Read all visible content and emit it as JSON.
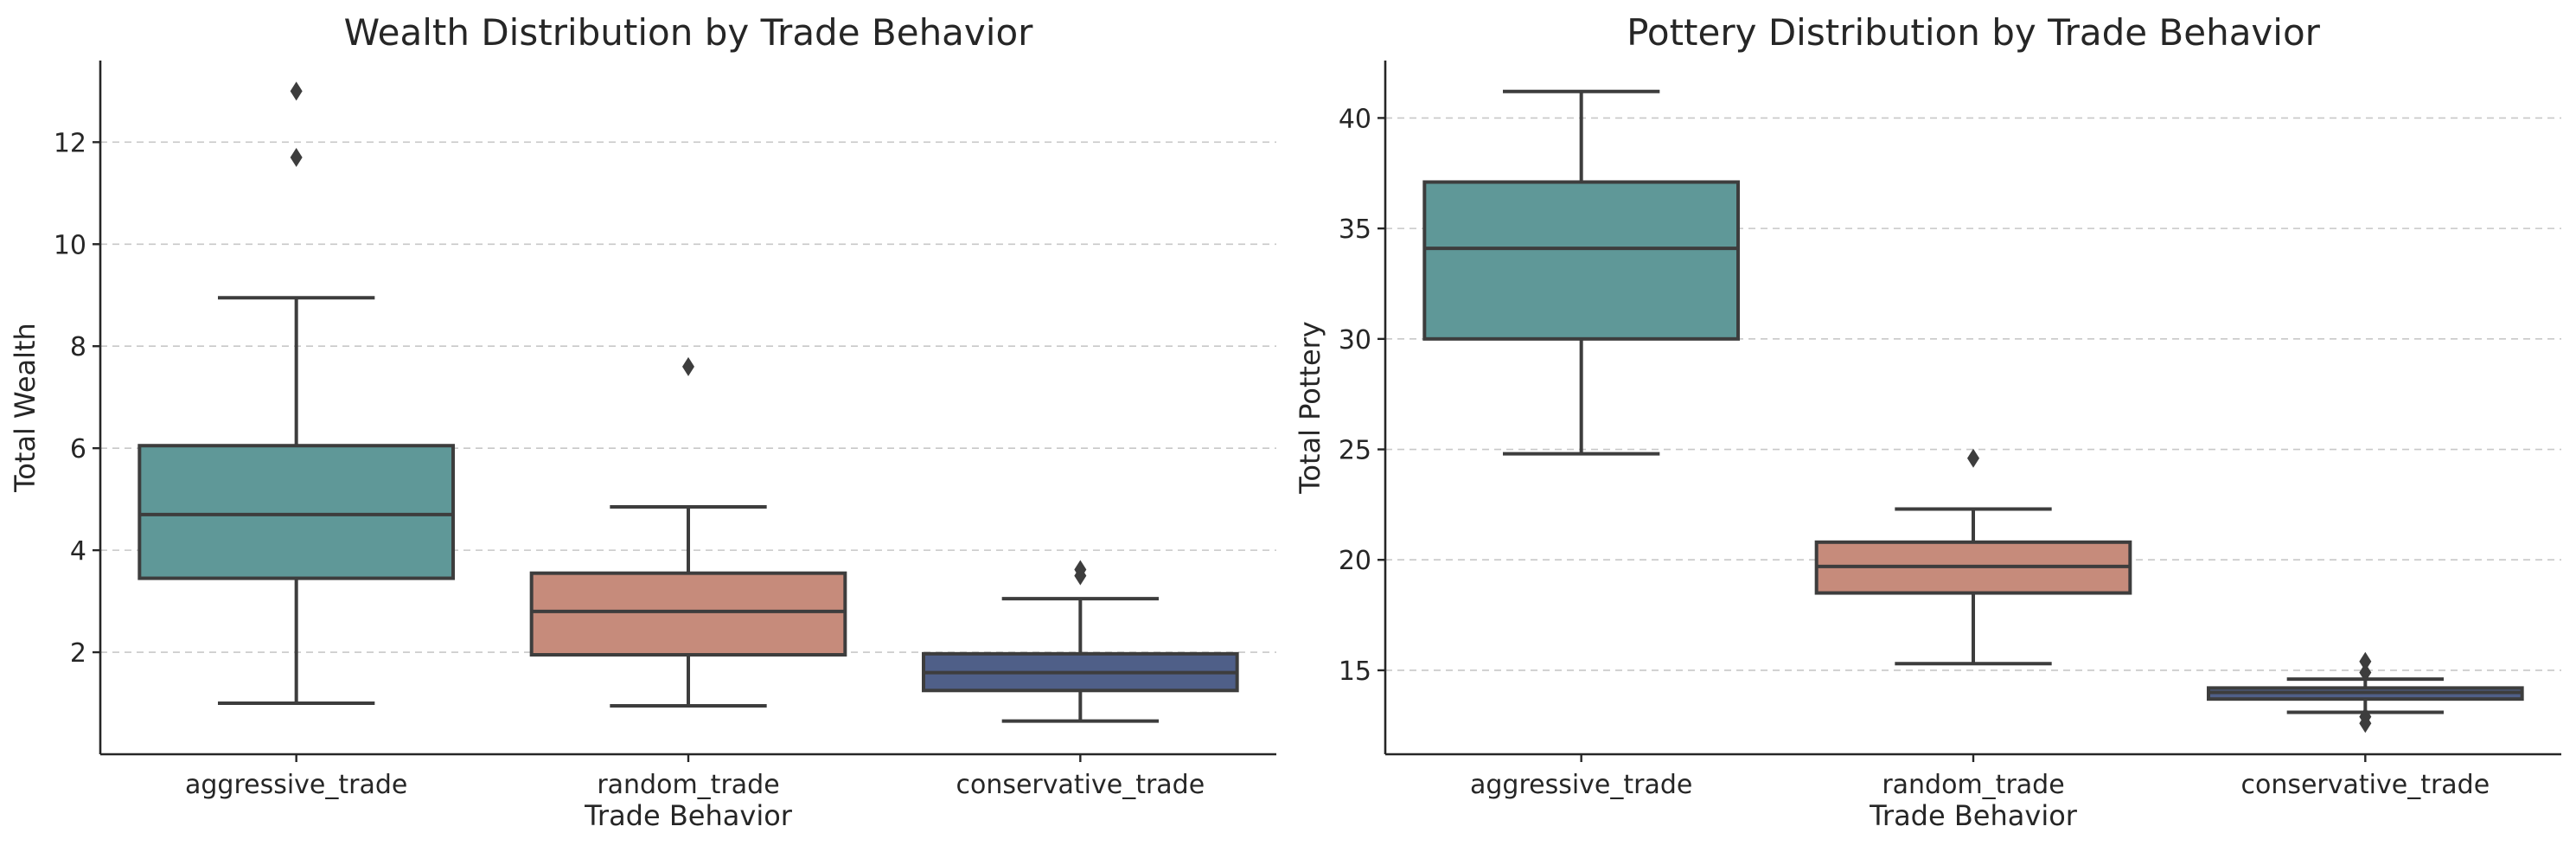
{
  "chart_data": [
    {
      "type": "box",
      "title": "Wealth Distribution by Trade Behavior",
      "xlabel": "Trade Behavior",
      "ylabel": "Total Wealth",
      "ylim": [
        0,
        13.6
      ],
      "yticks": [
        2,
        4,
        6,
        8,
        10,
        12
      ],
      "grid": "y",
      "categories": [
        "aggressive_trade",
        "random_trade",
        "conservative_trade"
      ],
      "colors": [
        "#5f9898",
        "#c68b7b",
        "#4f5f88"
      ],
      "boxes": [
        {
          "whislo": 1.0,
          "q1": 3.45,
          "med": 4.7,
          "q3": 6.05,
          "whishi": 8.95,
          "fliers": [
            11.7,
            13.0
          ]
        },
        {
          "whislo": 0.95,
          "q1": 1.95,
          "med": 2.8,
          "q3": 3.55,
          "whishi": 4.85,
          "fliers": [
            7.6
          ]
        },
        {
          "whislo": 0.65,
          "q1": 1.25,
          "med": 1.6,
          "q3": 1.97,
          "whishi": 3.05,
          "fliers": [
            3.5,
            3.62
          ]
        }
      ]
    },
    {
      "type": "box",
      "title": "Pottery Distribution by Trade Behavior",
      "xlabel": "Trade Behavior",
      "ylabel": "Total Pottery",
      "ylim": [
        11.2,
        42.6
      ],
      "yticks": [
        15,
        20,
        25,
        30,
        35,
        40
      ],
      "grid": "y",
      "categories": [
        "aggressive_trade",
        "random_trade",
        "conservative_trade"
      ],
      "colors": [
        "#5f9898",
        "#c68b7b",
        "#4f5f88"
      ],
      "boxes": [
        {
          "whislo": 24.8,
          "q1": 30.0,
          "med": 34.1,
          "q3": 37.1,
          "whishi": 41.2,
          "fliers": []
        },
        {
          "whislo": 15.3,
          "q1": 18.5,
          "med": 19.7,
          "q3": 20.8,
          "whishi": 22.3,
          "fliers": [
            24.6
          ]
        },
        {
          "whislo": 13.1,
          "q1": 13.7,
          "med": 14.0,
          "q3": 14.2,
          "whishi": 14.6,
          "fliers": [
            15.4,
            14.9,
            12.9,
            12.6
          ]
        }
      ]
    }
  ]
}
